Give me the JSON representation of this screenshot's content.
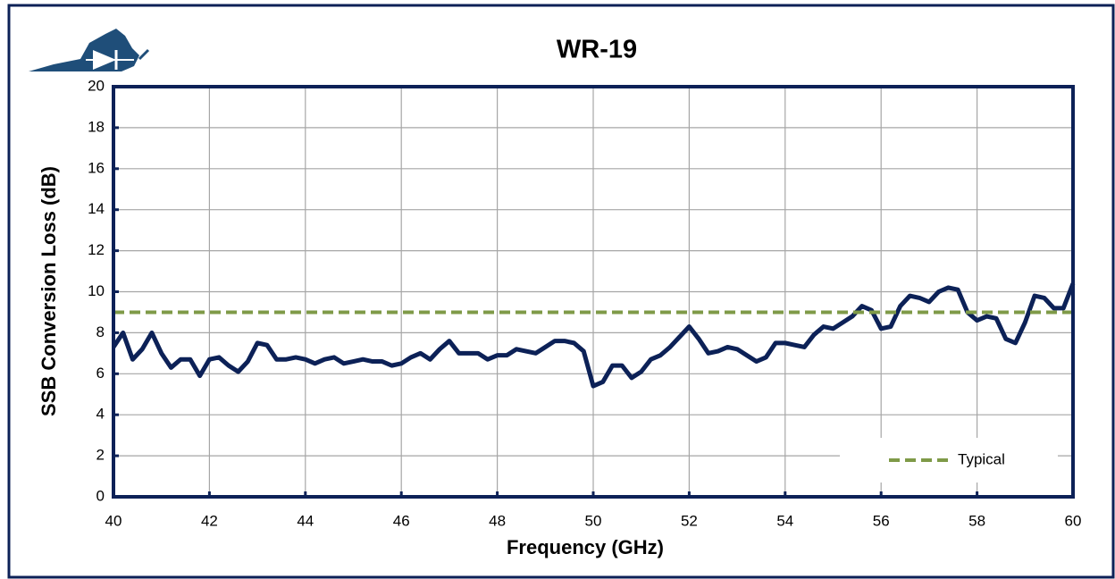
{
  "chart_data": {
    "type": "line",
    "title": "WR-19",
    "xlabel": "Frequency (GHz)",
    "ylabel": "SSB Conversion Loss (dB)",
    "xlim": [
      40,
      60
    ],
    "ylim": [
      0,
      20
    ],
    "xticks": [
      40,
      42,
      44,
      46,
      48,
      50,
      52,
      54,
      56,
      58,
      60
    ],
    "yticks": [
      0,
      2,
      4,
      6,
      8,
      10,
      12,
      14,
      16,
      18,
      20
    ],
    "grid": true,
    "legend": "lower right",
    "series": [
      {
        "color": "#0c2157",
        "style": "solid",
        "x": [
          40.0,
          40.2,
          40.4,
          40.6,
          40.8,
          41.0,
          41.2,
          41.4,
          41.6,
          41.8,
          42.0,
          42.2,
          42.4,
          42.6,
          42.8,
          43.0,
          43.2,
          43.4,
          43.6,
          43.8,
          44.0,
          44.2,
          44.4,
          44.6,
          44.8,
          45.0,
          45.2,
          45.4,
          45.6,
          45.8,
          46.0,
          46.2,
          46.4,
          46.6,
          46.8,
          47.0,
          47.2,
          47.4,
          47.6,
          47.8,
          48.0,
          48.2,
          48.4,
          48.6,
          48.8,
          49.0,
          49.2,
          49.4,
          49.6,
          49.8,
          50.0,
          50.2,
          50.4,
          50.6,
          50.8,
          51.0,
          51.2,
          51.4,
          51.6,
          51.8,
          52.0,
          52.2,
          52.4,
          52.6,
          52.8,
          53.0,
          53.2,
          53.4,
          53.6,
          53.8,
          54.0,
          54.2,
          54.4,
          54.6,
          54.8,
          55.0,
          55.2,
          55.4,
          55.6,
          55.8,
          56.0,
          56.2,
          56.4,
          56.6,
          56.8,
          57.0,
          57.2,
          57.4,
          57.6,
          57.8,
          58.0,
          58.2,
          58.4,
          58.6,
          58.8,
          59.0,
          59.2,
          59.4,
          59.6,
          59.8,
          60.0
        ],
        "values": [
          7.3,
          8.0,
          6.7,
          7.2,
          8.0,
          7.0,
          6.3,
          6.7,
          6.7,
          5.9,
          6.7,
          6.8,
          6.4,
          6.1,
          6.6,
          7.5,
          7.4,
          6.7,
          6.7,
          6.8,
          6.7,
          6.5,
          6.7,
          6.8,
          6.5,
          6.6,
          6.7,
          6.6,
          6.6,
          6.4,
          6.5,
          6.8,
          7.0,
          6.7,
          7.2,
          7.6,
          7.0,
          7.0,
          7.0,
          6.7,
          6.9,
          6.9,
          7.2,
          7.1,
          7.0,
          7.3,
          7.6,
          7.6,
          7.5,
          7.1,
          5.4,
          5.6,
          6.4,
          6.4,
          5.8,
          6.1,
          6.7,
          6.9,
          7.3,
          7.8,
          8.3,
          7.7,
          7.0,
          7.1,
          7.3,
          7.2,
          6.9,
          6.6,
          6.8,
          7.5,
          7.5,
          7.4,
          7.3,
          7.9,
          8.3,
          8.2,
          8.5,
          8.8,
          9.3,
          9.1,
          8.2,
          8.3,
          9.3,
          9.8,
          9.7,
          9.5,
          10.0,
          10.2,
          10.1,
          9.0,
          8.6,
          8.8,
          8.7,
          7.7,
          7.5,
          8.5,
          9.8,
          9.7,
          9.2,
          9.2,
          10.4
        ]
      },
      {
        "name": "Typical",
        "color": "#7f9a48",
        "style": "dashed",
        "x": [
          40,
          60
        ],
        "values": [
          9,
          9
        ]
      }
    ]
  }
}
